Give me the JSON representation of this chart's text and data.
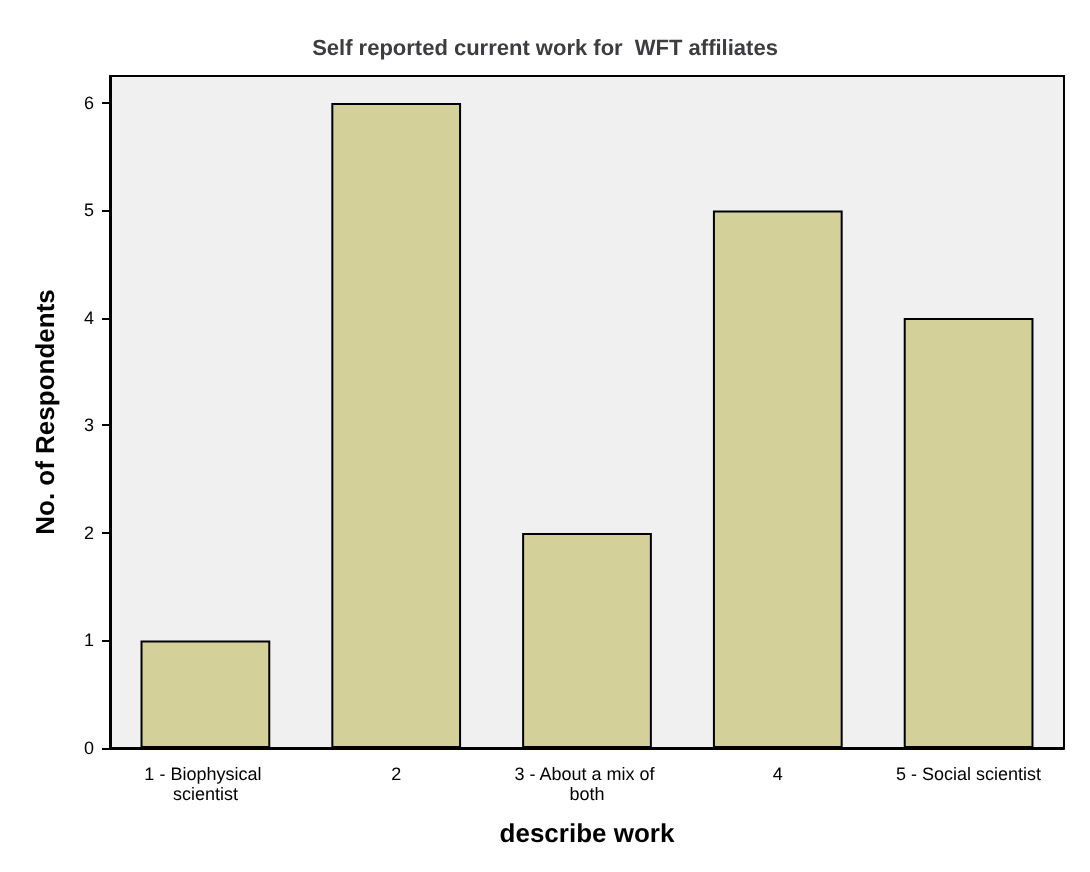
{
  "chart_data": {
    "type": "bar",
    "title": "Self reported current work for  WFT affiliates",
    "categories": [
      "1 - Biophysical scientist",
      "2",
      "3 - About a mix of both",
      "4",
      "5 - Social scientist"
    ],
    "values": [
      1,
      6,
      2,
      5,
      4
    ],
    "color": "#d4d09a",
    "xlabel": "describe work",
    "ylabel": "No. of Respondents",
    "ylim": [
      0,
      6.25
    ],
    "yticks": [
      0,
      1,
      2,
      3,
      4,
      5,
      6
    ],
    "grid": false
  }
}
